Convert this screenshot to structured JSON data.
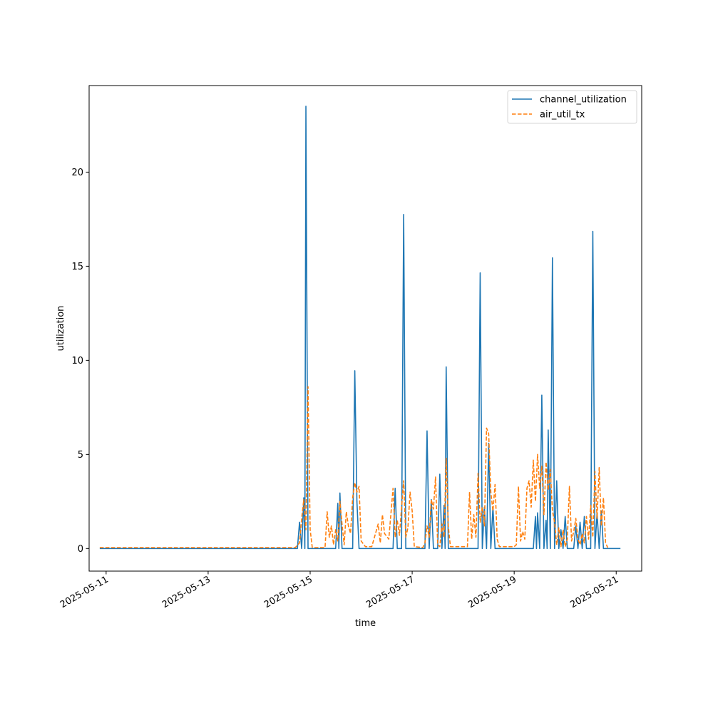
{
  "chart_data": {
    "type": "line",
    "title": "",
    "xlabel": "time",
    "ylabel": "utilization",
    "xlim": [
      "2025-05-10 16:00",
      "2025-05-21 12:00"
    ],
    "ylim": [
      -1.2,
      24.6
    ],
    "x_ticks": [
      "2025-05-11",
      "2025-05-13",
      "2025-05-15",
      "2025-05-17",
      "2025-05-19",
      "2025-05-21"
    ],
    "y_ticks": [
      0,
      5,
      10,
      15,
      20
    ],
    "grid": false,
    "legend_position": "top-right",
    "series": [
      {
        "name": "channel_utilization",
        "color": "#1f77b4",
        "style": "solid",
        "points": [
          [
            "2025-05-10 21:00",
            0
          ],
          [
            "2025-05-14 18:00",
            0
          ],
          [
            "2025-05-14 19:00",
            1.4
          ],
          [
            "2025-05-14 20:00",
            0
          ],
          [
            "2025-05-14 21:00",
            2.7
          ],
          [
            "2025-05-14 21:30",
            0
          ],
          [
            "2025-05-14 22:00",
            23.5
          ],
          [
            "2025-05-14 23:00",
            0
          ],
          [
            "2025-05-15 12:00",
            0
          ],
          [
            "2025-05-15 13:00",
            2.4
          ],
          [
            "2025-05-15 13:30",
            0
          ],
          [
            "2025-05-15 14:00",
            2.95
          ],
          [
            "2025-05-15 15:00",
            0
          ],
          [
            "2025-05-15 20:00",
            0
          ],
          [
            "2025-05-15 21:00",
            9.45
          ],
          [
            "2025-05-15 22:00",
            2.5
          ],
          [
            "2025-05-15 23:00",
            0
          ],
          [
            "2025-05-16 15:00",
            0
          ],
          [
            "2025-05-16 16:00",
            3.2
          ],
          [
            "2025-05-16 17:00",
            0
          ],
          [
            "2025-05-16 19:00",
            0
          ],
          [
            "2025-05-16 20:00",
            17.75
          ],
          [
            "2025-05-16 21:00",
            0
          ],
          [
            "2025-05-17 06:00",
            0
          ],
          [
            "2025-05-17 07:00",
            6.25
          ],
          [
            "2025-05-17 08:00",
            0
          ],
          [
            "2025-05-17 09:00",
            2.6
          ],
          [
            "2025-05-17 10:00",
            0
          ],
          [
            "2025-05-17 12:00",
            0
          ],
          [
            "2025-05-17 13:00",
            3.95
          ],
          [
            "2025-05-17 14:00",
            0
          ],
          [
            "2025-05-17 15:00",
            2.3
          ],
          [
            "2025-05-17 15:30",
            0
          ],
          [
            "2025-05-17 16:00",
            9.65
          ],
          [
            "2025-05-17 17:00",
            0
          ],
          [
            "2025-05-18 07:00",
            0
          ],
          [
            "2025-05-18 08:00",
            14.65
          ],
          [
            "2025-05-18 09:00",
            0
          ],
          [
            "2025-05-18 10:00",
            2.2
          ],
          [
            "2025-05-18 11:00",
            0
          ],
          [
            "2025-05-18 12:00",
            5.6
          ],
          [
            "2025-05-18 13:00",
            0
          ],
          [
            "2025-05-18 14:00",
            2.2
          ],
          [
            "2025-05-18 15:00",
            0
          ],
          [
            "2025-05-19 09:00",
            0
          ],
          [
            "2025-05-19 10:00",
            1.7
          ],
          [
            "2025-05-19 10:30",
            0
          ],
          [
            "2025-05-19 11:00",
            1.9
          ],
          [
            "2025-05-19 12:00",
            0
          ],
          [
            "2025-05-19 13:00",
            8.15
          ],
          [
            "2025-05-19 14:00",
            0
          ],
          [
            "2025-05-19 15:00",
            1.5
          ],
          [
            "2025-05-19 15:30",
            0
          ],
          [
            "2025-05-19 16:00",
            6.3
          ],
          [
            "2025-05-19 17:00",
            0
          ],
          [
            "2025-05-19 18:00",
            15.45
          ],
          [
            "2025-05-19 19:00",
            0
          ],
          [
            "2025-05-19 20:00",
            3.6
          ],
          [
            "2025-05-19 21:00",
            0
          ],
          [
            "2025-05-19 22:00",
            1.0
          ],
          [
            "2025-05-19 23:00",
            0
          ],
          [
            "2025-05-20 00:00",
            1.7
          ],
          [
            "2025-05-20 01:00",
            0
          ],
          [
            "2025-05-20 04:00",
            0
          ],
          [
            "2025-05-20 05:00",
            1.2
          ],
          [
            "2025-05-20 06:00",
            0
          ],
          [
            "2025-05-20 07:00",
            1.4
          ],
          [
            "2025-05-20 08:00",
            0
          ],
          [
            "2025-05-20 09:00",
            1.7
          ],
          [
            "2025-05-20 10:00",
            0
          ],
          [
            "2025-05-20 12:00",
            0
          ],
          [
            "2025-05-20 13:00",
            16.85
          ],
          [
            "2025-05-20 14:00",
            0
          ],
          [
            "2025-05-20 15:00",
            1.9
          ],
          [
            "2025-05-20 16:00",
            0
          ],
          [
            "2025-05-20 17:00",
            2.0
          ],
          [
            "2025-05-20 18:00",
            0
          ],
          [
            "2025-05-21 02:00",
            0
          ]
        ]
      },
      {
        "name": "air_util_tx",
        "color": "#ff7f0e",
        "style": "dashed",
        "points": [
          [
            "2025-05-10 21:00",
            0.05
          ],
          [
            "2025-05-14 17:00",
            0.05
          ],
          [
            "2025-05-14 19:00",
            0.3
          ],
          [
            "2025-05-14 20:00",
            1.6
          ],
          [
            "2025-05-14 21:00",
            2.6
          ],
          [
            "2025-05-14 22:00",
            1.0
          ],
          [
            "2025-05-14 23:00",
            8.6
          ],
          [
            "2025-05-15 00:00",
            1.0
          ],
          [
            "2025-05-15 01:00",
            0.05
          ],
          [
            "2025-05-15 07:00",
            0.05
          ],
          [
            "2025-05-15 08:00",
            1.95
          ],
          [
            "2025-05-15 09:00",
            0.6
          ],
          [
            "2025-05-15 10:00",
            1.2
          ],
          [
            "2025-05-15 11:00",
            0.2
          ],
          [
            "2025-05-15 12:00",
            1.0
          ],
          [
            "2025-05-15 13:00",
            0.4
          ],
          [
            "2025-05-15 14:00",
            2.5
          ],
          [
            "2025-05-15 15:00",
            1.3
          ],
          [
            "2025-05-15 16:00",
            0.2
          ],
          [
            "2025-05-15 17:00",
            1.95
          ],
          [
            "2025-05-15 18:00",
            1.2
          ],
          [
            "2025-05-15 19:00",
            0.8
          ],
          [
            "2025-05-15 20:00",
            2.7
          ],
          [
            "2025-05-15 21:00",
            3.5
          ],
          [
            "2025-05-15 22:00",
            3.0
          ],
          [
            "2025-05-15 23:00",
            3.3
          ],
          [
            "2025-05-16 00:00",
            0.4
          ],
          [
            "2025-05-16 02:00",
            0.1
          ],
          [
            "2025-05-16 05:00",
            0.1
          ],
          [
            "2025-05-16 06:00",
            0.5
          ],
          [
            "2025-05-16 08:00",
            1.3
          ],
          [
            "2025-05-16 09:00",
            0.3
          ],
          [
            "2025-05-16 10:00",
            1.8
          ],
          [
            "2025-05-16 11:00",
            0.8
          ],
          [
            "2025-05-16 13:00",
            0.5
          ],
          [
            "2025-05-16 15:00",
            3.2
          ],
          [
            "2025-05-16 16:00",
            0.6
          ],
          [
            "2025-05-16 17:00",
            1.5
          ],
          [
            "2025-05-16 18:00",
            0.7
          ],
          [
            "2025-05-16 20:00",
            3.6
          ],
          [
            "2025-05-16 21:00",
            0.6
          ],
          [
            "2025-05-16 22:00",
            1.1
          ],
          [
            "2025-05-16 23:00",
            3.0
          ],
          [
            "2025-05-17 00:00",
            2.0
          ],
          [
            "2025-05-17 01:00",
            0.1
          ],
          [
            "2025-05-17 05:00",
            0.05
          ],
          [
            "2025-05-17 06:00",
            0.3
          ],
          [
            "2025-05-17 07:00",
            1.2
          ],
          [
            "2025-05-17 08:00",
            0.6
          ],
          [
            "2025-05-17 09:00",
            2.6
          ],
          [
            "2025-05-17 10:00",
            2.1
          ],
          [
            "2025-05-17 11:00",
            3.8
          ],
          [
            "2025-05-17 12:00",
            0.2
          ],
          [
            "2025-05-17 13:00",
            0.1
          ],
          [
            "2025-05-17 14:00",
            1.3
          ],
          [
            "2025-05-17 15:00",
            0.6
          ],
          [
            "2025-05-17 16:00",
            4.8
          ],
          [
            "2025-05-17 17:00",
            1.2
          ],
          [
            "2025-05-17 18:00",
            0.1
          ],
          [
            "2025-05-18 02:00",
            0.1
          ],
          [
            "2025-05-18 03:00",
            3.0
          ],
          [
            "2025-05-18 04:00",
            0.5
          ],
          [
            "2025-05-18 05:00",
            1.8
          ],
          [
            "2025-05-18 06:00",
            0.6
          ],
          [
            "2025-05-18 07:00",
            4.0
          ],
          [
            "2025-05-18 08:00",
            1.4
          ],
          [
            "2025-05-18 09:00",
            2.2
          ],
          [
            "2025-05-18 10:00",
            1.2
          ],
          [
            "2025-05-18 11:00",
            6.4
          ],
          [
            "2025-05-18 12:00",
            6.1
          ],
          [
            "2025-05-18 13:00",
            3.0
          ],
          [
            "2025-05-18 14:00",
            2.0
          ],
          [
            "2025-05-18 15:00",
            3.4
          ],
          [
            "2025-05-18 16:00",
            0.5
          ],
          [
            "2025-05-18 17:00",
            0.1
          ],
          [
            "2025-05-19 00:00",
            0.1
          ],
          [
            "2025-05-19 01:00",
            0.2
          ],
          [
            "2025-05-19 02:00",
            3.3
          ],
          [
            "2025-05-19 03:00",
            0.4
          ],
          [
            "2025-05-19 04:00",
            0.9
          ],
          [
            "2025-05-19 05:00",
            0.5
          ],
          [
            "2025-05-19 06:00",
            3.2
          ],
          [
            "2025-05-19 07:00",
            3.6
          ],
          [
            "2025-05-19 08:00",
            2.2
          ],
          [
            "2025-05-19 09:00",
            4.7
          ],
          [
            "2025-05-19 10:00",
            2.5
          ],
          [
            "2025-05-19 11:00",
            5.0
          ],
          [
            "2025-05-19 12:00",
            3.2
          ],
          [
            "2025-05-19 13:00",
            4.4
          ],
          [
            "2025-05-19 14:00",
            1.8
          ],
          [
            "2025-05-19 15:00",
            4.6
          ],
          [
            "2025-05-19 16:00",
            3.1
          ],
          [
            "2025-05-19 17:00",
            4.2
          ],
          [
            "2025-05-19 18:00",
            2.0
          ],
          [
            "2025-05-19 19:00",
            1.4
          ],
          [
            "2025-05-19 20:00",
            0.2
          ],
          [
            "2025-05-19 21:00",
            1.1
          ],
          [
            "2025-05-19 22:00",
            0.1
          ],
          [
            "2025-05-19 23:00",
            1.0
          ],
          [
            "2025-05-20 00:00",
            0.1
          ],
          [
            "2025-05-20 01:00",
            0.5
          ],
          [
            "2025-05-20 02:00",
            3.3
          ],
          [
            "2025-05-20 03:00",
            0.4
          ],
          [
            "2025-05-20 04:00",
            0.9
          ],
          [
            "2025-05-20 05:00",
            1.6
          ],
          [
            "2025-05-20 06:00",
            0.5
          ],
          [
            "2025-05-20 07:00",
            0.2
          ],
          [
            "2025-05-20 08:00",
            0.8
          ],
          [
            "2025-05-20 09:00",
            0.3
          ],
          [
            "2025-05-20 10:00",
            1.7
          ],
          [
            "2025-05-20 11:00",
            0.5
          ],
          [
            "2025-05-20 12:00",
            2.3
          ],
          [
            "2025-05-20 13:00",
            0.6
          ],
          [
            "2025-05-20 14:00",
            4.1
          ],
          [
            "2025-05-20 15:00",
            1.6
          ],
          [
            "2025-05-20 16:00",
            4.3
          ],
          [
            "2025-05-20 17:00",
            1.2
          ],
          [
            "2025-05-20 18:00",
            2.7
          ],
          [
            "2025-05-20 19:00",
            0.3
          ],
          [
            "2025-05-20 20:00",
            0.05
          ]
        ]
      }
    ]
  }
}
